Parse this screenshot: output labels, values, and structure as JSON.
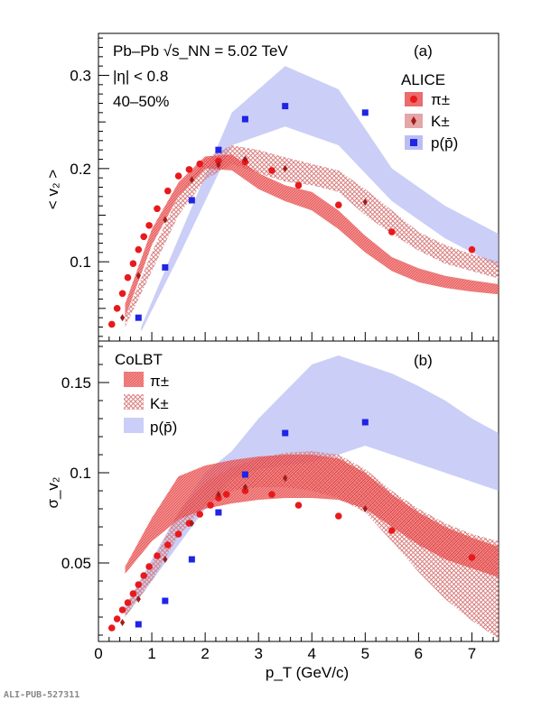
{
  "watermark": "ALI-PUB-527311",
  "colors": {
    "pion": "#e8191c",
    "kaon": "#a01c1c",
    "proton": "#1f24e6",
    "pion_band": "#e53a3a",
    "kaon_band": "#d98080",
    "proton_band": "#a9aef0"
  },
  "chart_data": [
    {
      "type": "scatter",
      "panel_label": "(a)",
      "ylabel": "< v₂ >",
      "xlabel": "p_T (GeV/c)",
      "xlim": [
        0,
        7.5
      ],
      "ylim": [
        0.015,
        0.345
      ],
      "yticks": [
        0.1,
        0.2,
        0.3
      ],
      "ytick_labels": [
        "0.1",
        "0.2",
        "0.3"
      ],
      "annotations": [
        "Pb–Pb √s_NN = 5.02 TeV",
        "|η| < 0.8",
        "40–50%"
      ],
      "legend_title": "ALICE",
      "legend_entries": [
        "π±",
        "K±",
        "p(p̄)"
      ],
      "series": [
        {
          "name": "π±",
          "marker": "circle",
          "x": [
            0.25,
            0.35,
            0.45,
            0.55,
            0.65,
            0.75,
            0.85,
            0.95,
            1.1,
            1.3,
            1.5,
            1.7,
            1.9,
            2.25,
            2.75,
            3.25,
            3.75,
            4.5,
            5.5,
            7.0
          ],
          "y": [
            0.033,
            0.05,
            0.066,
            0.083,
            0.098,
            0.113,
            0.127,
            0.139,
            0.157,
            0.176,
            0.192,
            0.199,
            0.205,
            0.208,
            0.207,
            0.198,
            0.182,
            0.161,
            0.132,
            0.113
          ]
        },
        {
          "name": "K±",
          "marker": "diamond",
          "x": [
            0.45,
            0.75,
            1.25,
            1.75,
            2.25,
            2.75,
            3.5,
            5.0
          ],
          "y": [
            0.04,
            0.085,
            0.145,
            0.188,
            0.204,
            0.21,
            0.2,
            0.164
          ]
        },
        {
          "name": "p(p̄)",
          "marker": "square",
          "x": [
            0.75,
            1.25,
            1.75,
            2.25,
            2.75,
            3.5,
            5.0
          ],
          "y": [
            0.04,
            0.094,
            0.166,
            0.22,
            0.253,
            0.267,
            0.26
          ]
        }
      ],
      "bands": [
        {
          "series": "p(p̄)",
          "style": "solid",
          "x": [
            0.8,
            1.5,
            2.5,
            3.5,
            4.5,
            5.5,
            6.5,
            7.5
          ],
          "lo": [
            0.025,
            0.105,
            0.225,
            0.245,
            0.225,
            0.165,
            0.125,
            0.095
          ],
          "hi": [
            0.03,
            0.125,
            0.26,
            0.31,
            0.285,
            0.2,
            0.16,
            0.13
          ]
        },
        {
          "series": "K±",
          "style": "hatched",
          "x": [
            0.5,
            1.0,
            1.5,
            2.0,
            2.5,
            3.0,
            3.5,
            4.0,
            4.5,
            5.0,
            5.5,
            6.0,
            6.5,
            7.0,
            7.5
          ],
          "lo": [
            0.03,
            0.09,
            0.15,
            0.188,
            0.205,
            0.195,
            0.186,
            0.182,
            0.175,
            0.15,
            0.13,
            0.112,
            0.098,
            0.09,
            0.082
          ],
          "hi": [
            0.04,
            0.11,
            0.17,
            0.21,
            0.225,
            0.22,
            0.212,
            0.205,
            0.198,
            0.178,
            0.155,
            0.132,
            0.118,
            0.108,
            0.1
          ]
        },
        {
          "series": "π±",
          "style": "dense",
          "x": [
            0.5,
            1.0,
            1.5,
            2.0,
            2.5,
            3.0,
            3.5,
            4.0,
            4.5,
            5.0,
            5.5,
            6.0,
            6.5,
            7.0,
            7.5
          ],
          "lo": [
            0.04,
            0.118,
            0.17,
            0.2,
            0.198,
            0.178,
            0.165,
            0.155,
            0.135,
            0.11,
            0.09,
            0.078,
            0.072,
            0.068,
            0.065
          ],
          "hi": [
            0.055,
            0.135,
            0.185,
            0.213,
            0.215,
            0.195,
            0.182,
            0.175,
            0.155,
            0.128,
            0.105,
            0.093,
            0.085,
            0.08,
            0.076
          ]
        }
      ]
    },
    {
      "type": "scatter",
      "panel_label": "(b)",
      "ylabel": "σ_v₂",
      "xlabel": "p_T (GeV/c)",
      "xlim": [
        0,
        7.5
      ],
      "xticks": [
        0,
        1,
        2,
        3,
        4,
        5,
        6,
        7
      ],
      "xtick_labels": [
        "0",
        "1",
        "2",
        "3",
        "4",
        "5",
        "6",
        "7"
      ],
      "ylim": [
        0.0065,
        0.173
      ],
      "yticks": [
        0.05,
        0.1,
        0.15
      ],
      "ytick_labels": [
        "0.05",
        "0.1",
        "0.15"
      ],
      "legend_title": "CoLBT",
      "legend_entries": [
        "π±",
        "K±",
        "p(p̄)"
      ],
      "series": [
        {
          "name": "π±",
          "marker": "circle",
          "x": [
            0.25,
            0.35,
            0.45,
            0.55,
            0.65,
            0.75,
            0.85,
            0.95,
            1.1,
            1.3,
            1.5,
            1.7,
            1.9,
            2.1,
            2.25,
            2.4,
            2.75,
            3.25,
            3.75,
            4.5,
            5.5,
            7.0
          ],
          "y": [
            0.014,
            0.019,
            0.024,
            0.028,
            0.033,
            0.038,
            0.043,
            0.048,
            0.054,
            0.06,
            0.066,
            0.072,
            0.077,
            0.082,
            0.086,
            0.088,
            0.09,
            0.088,
            0.082,
            0.076,
            0.068,
            0.053
          ]
        },
        {
          "name": "K±",
          "marker": "diamond",
          "x": [
            0.45,
            0.75,
            1.25,
            1.75,
            2.25,
            2.75,
            3.5,
            5.0
          ],
          "y": [
            0.017,
            0.03,
            0.052,
            0.072,
            0.088,
            0.092,
            0.097,
            0.08
          ]
        },
        {
          "name": "p(p̄)",
          "marker": "square",
          "x": [
            0.75,
            1.25,
            1.75,
            2.25,
            2.75,
            3.5,
            5.0
          ],
          "y": [
            0.016,
            0.029,
            0.052,
            0.078,
            0.099,
            0.122,
            0.128
          ]
        }
      ],
      "bands": [
        {
          "series": "p(p̄)",
          "style": "solid",
          "x": [
            0.5,
            1.0,
            1.5,
            2.0,
            2.5,
            3.0,
            3.5,
            4.0,
            4.5,
            5.0,
            5.5,
            6.0,
            6.5,
            7.0,
            7.5
          ],
          "lo": [
            0.02,
            0.04,
            0.06,
            0.08,
            0.097,
            0.102,
            0.104,
            0.106,
            0.11,
            0.115,
            0.11,
            0.105,
            0.1,
            0.095,
            0.09
          ],
          "hi": [
            0.026,
            0.052,
            0.078,
            0.1,
            0.112,
            0.13,
            0.145,
            0.16,
            0.165,
            0.16,
            0.155,
            0.148,
            0.14,
            0.13,
            0.122
          ]
        },
        {
          "series": "K±",
          "style": "hatched",
          "x": [
            0.5,
            1.0,
            1.5,
            2.0,
            2.5,
            3.0,
            3.5,
            4.0,
            4.5,
            5.0,
            5.5,
            6.0,
            6.5,
            7.0,
            7.5
          ],
          "lo": [
            0.02,
            0.04,
            0.065,
            0.082,
            0.09,
            0.092,
            0.092,
            0.09,
            0.086,
            0.078,
            0.062,
            0.045,
            0.03,
            0.018,
            0.008
          ],
          "hi": [
            0.026,
            0.05,
            0.078,
            0.095,
            0.103,
            0.108,
            0.111,
            0.112,
            0.11,
            0.102,
            0.09,
            0.08,
            0.072,
            0.066,
            0.062
          ]
        },
        {
          "series": "π±",
          "style": "dense",
          "x": [
            0.5,
            1.0,
            1.5,
            2.0,
            2.5,
            3.0,
            3.5,
            4.0,
            4.5,
            5.0,
            5.5,
            6.0,
            6.5,
            7.0,
            7.5
          ],
          "lo": [
            0.044,
            0.062,
            0.074,
            0.08,
            0.083,
            0.085,
            0.086,
            0.086,
            0.085,
            0.08,
            0.07,
            0.06,
            0.052,
            0.047,
            0.042
          ],
          "hi": [
            0.048,
            0.075,
            0.098,
            0.104,
            0.107,
            0.109,
            0.11,
            0.11,
            0.108,
            0.1,
            0.088,
            0.078,
            0.07,
            0.064,
            0.059
          ]
        }
      ]
    }
  ]
}
